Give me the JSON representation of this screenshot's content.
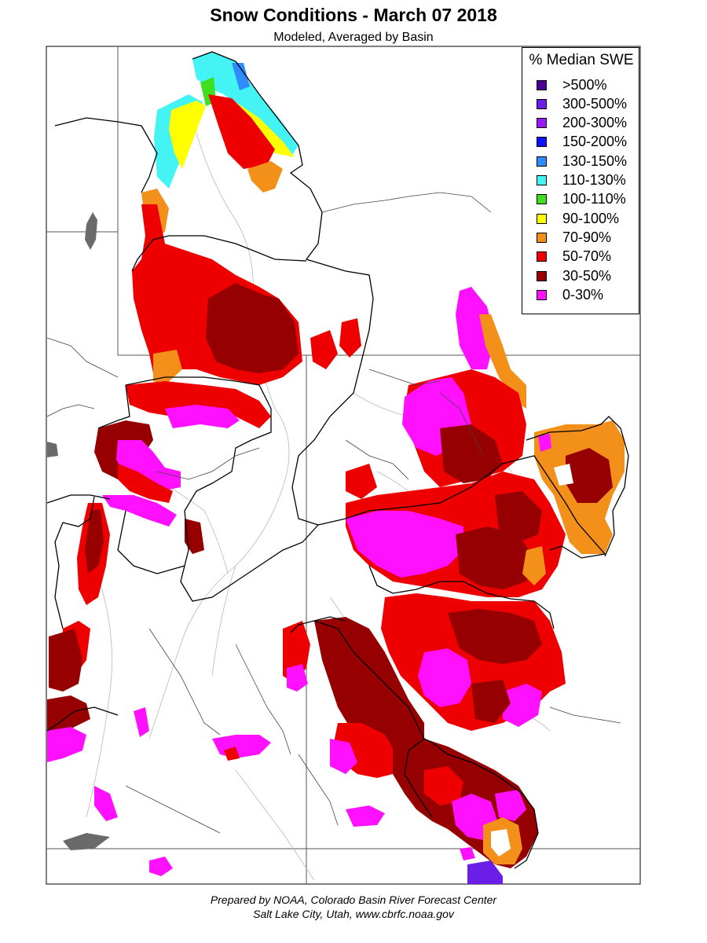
{
  "title": "Snow Conditions - March 07 2018",
  "subtitle": "Modeled, Averaged by Basin",
  "legend": {
    "title": "% Median SWE",
    "items": [
      {
        "label": ">500%",
        "color": "#4b0096"
      },
      {
        "label": "300-500%",
        "color": "#6a1ee8"
      },
      {
        "label": "200-300%",
        "color": "#9a1aff"
      },
      {
        "label": "150-200%",
        "color": "#0a14ff"
      },
      {
        "label": "130-150%",
        "color": "#2e8cff"
      },
      {
        "label": "110-130%",
        "color": "#44f4f4"
      },
      {
        "label": "100-110%",
        "color": "#3ddf1e"
      },
      {
        "label": "90-100%",
        "color": "#ffff00"
      },
      {
        "label": "70-90%",
        "color": "#f2901a"
      },
      {
        "label": "50-70%",
        "color": "#ee0000"
      },
      {
        "label": "30-50%",
        "color": "#960000"
      },
      {
        "label": "0-30%",
        "color": "#ff10ff"
      }
    ]
  },
  "credits": {
    "line1": "Prepared by NOAA, Colorado Basin River Forecast Center",
    "line2": "Salt Lake City, Utah, www.cbrfc.noaa.gov"
  }
}
